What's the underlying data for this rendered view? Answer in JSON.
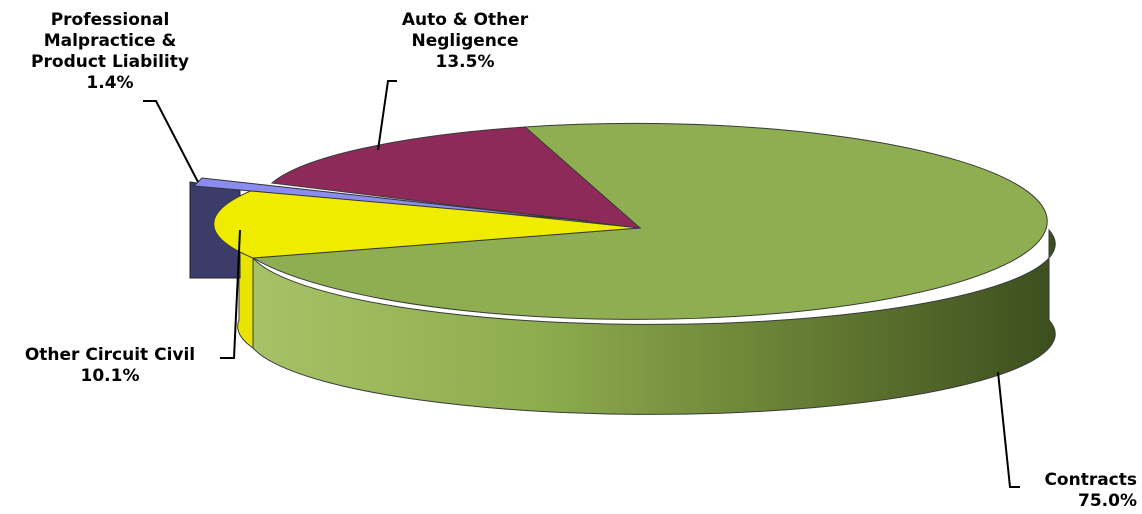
{
  "chart_data": {
    "type": "pie",
    "three_d": true,
    "exploded_slice": "Professional Malpractice & Product Liability",
    "slices": [
      {
        "label_lines": [
          "Contracts"
        ],
        "value": 75.0,
        "value_text": "75.0%",
        "color": "#8FAE52"
      },
      {
        "label_lines": [
          "Other Circuit Civil"
        ],
        "value": 10.1,
        "value_text": "10.1%",
        "color": "#F0EC00"
      },
      {
        "label_lines": [
          "Professional",
          "Malpractice &",
          "Product Liability"
        ],
        "value": 1.4,
        "value_text": "1.4%",
        "color": "#8A8CF0"
      },
      {
        "label_lines": [
          "Auto & Other",
          "Negligence"
        ],
        "value": 13.5,
        "value_text": "13.5%",
        "color": "#8E2A5A"
      }
    ]
  }
}
